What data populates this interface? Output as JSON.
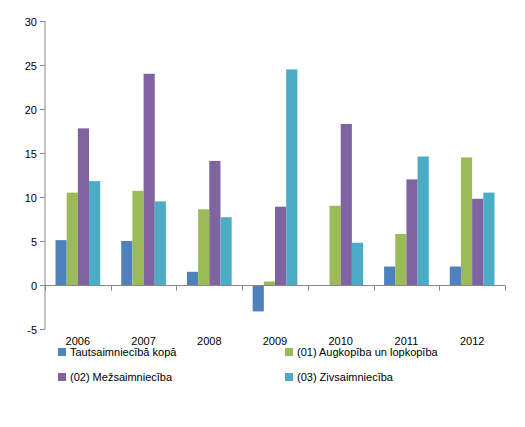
{
  "chart_data": {
    "type": "bar",
    "categories": [
      "2006",
      "2007",
      "2008",
      "2009",
      "2010",
      "2011",
      "2012"
    ],
    "series": [
      {
        "name": "Tautsaimniecībā kopā",
        "color": "#4f81bd",
        "values": [
          5.1,
          5.0,
          1.5,
          -3.0,
          0,
          2.1,
          2.1
        ]
      },
      {
        "name": "(01) Augkopība un lopkopība",
        "color": "#9bbb59",
        "values": [
          10.5,
          10.7,
          8.6,
          0.4,
          9.0,
          5.8,
          14.5
        ]
      },
      {
        "name": "(02) Mežsaimniecība",
        "color": "#8064a2",
        "values": [
          17.8,
          24.0,
          14.1,
          8.9,
          18.3,
          12.0,
          9.8
        ]
      },
      {
        "name": "(03) Zivsaimniecība",
        "color": "#4bacc6",
        "values": [
          11.8,
          9.5,
          7.7,
          24.5,
          4.8,
          14.6,
          10.5
        ]
      }
    ],
    "ylim": [
      -5,
      30
    ],
    "yticks": [
      -5,
      0,
      5,
      10,
      15,
      20,
      25,
      30
    ],
    "grid": false,
    "legend": "bottom"
  }
}
